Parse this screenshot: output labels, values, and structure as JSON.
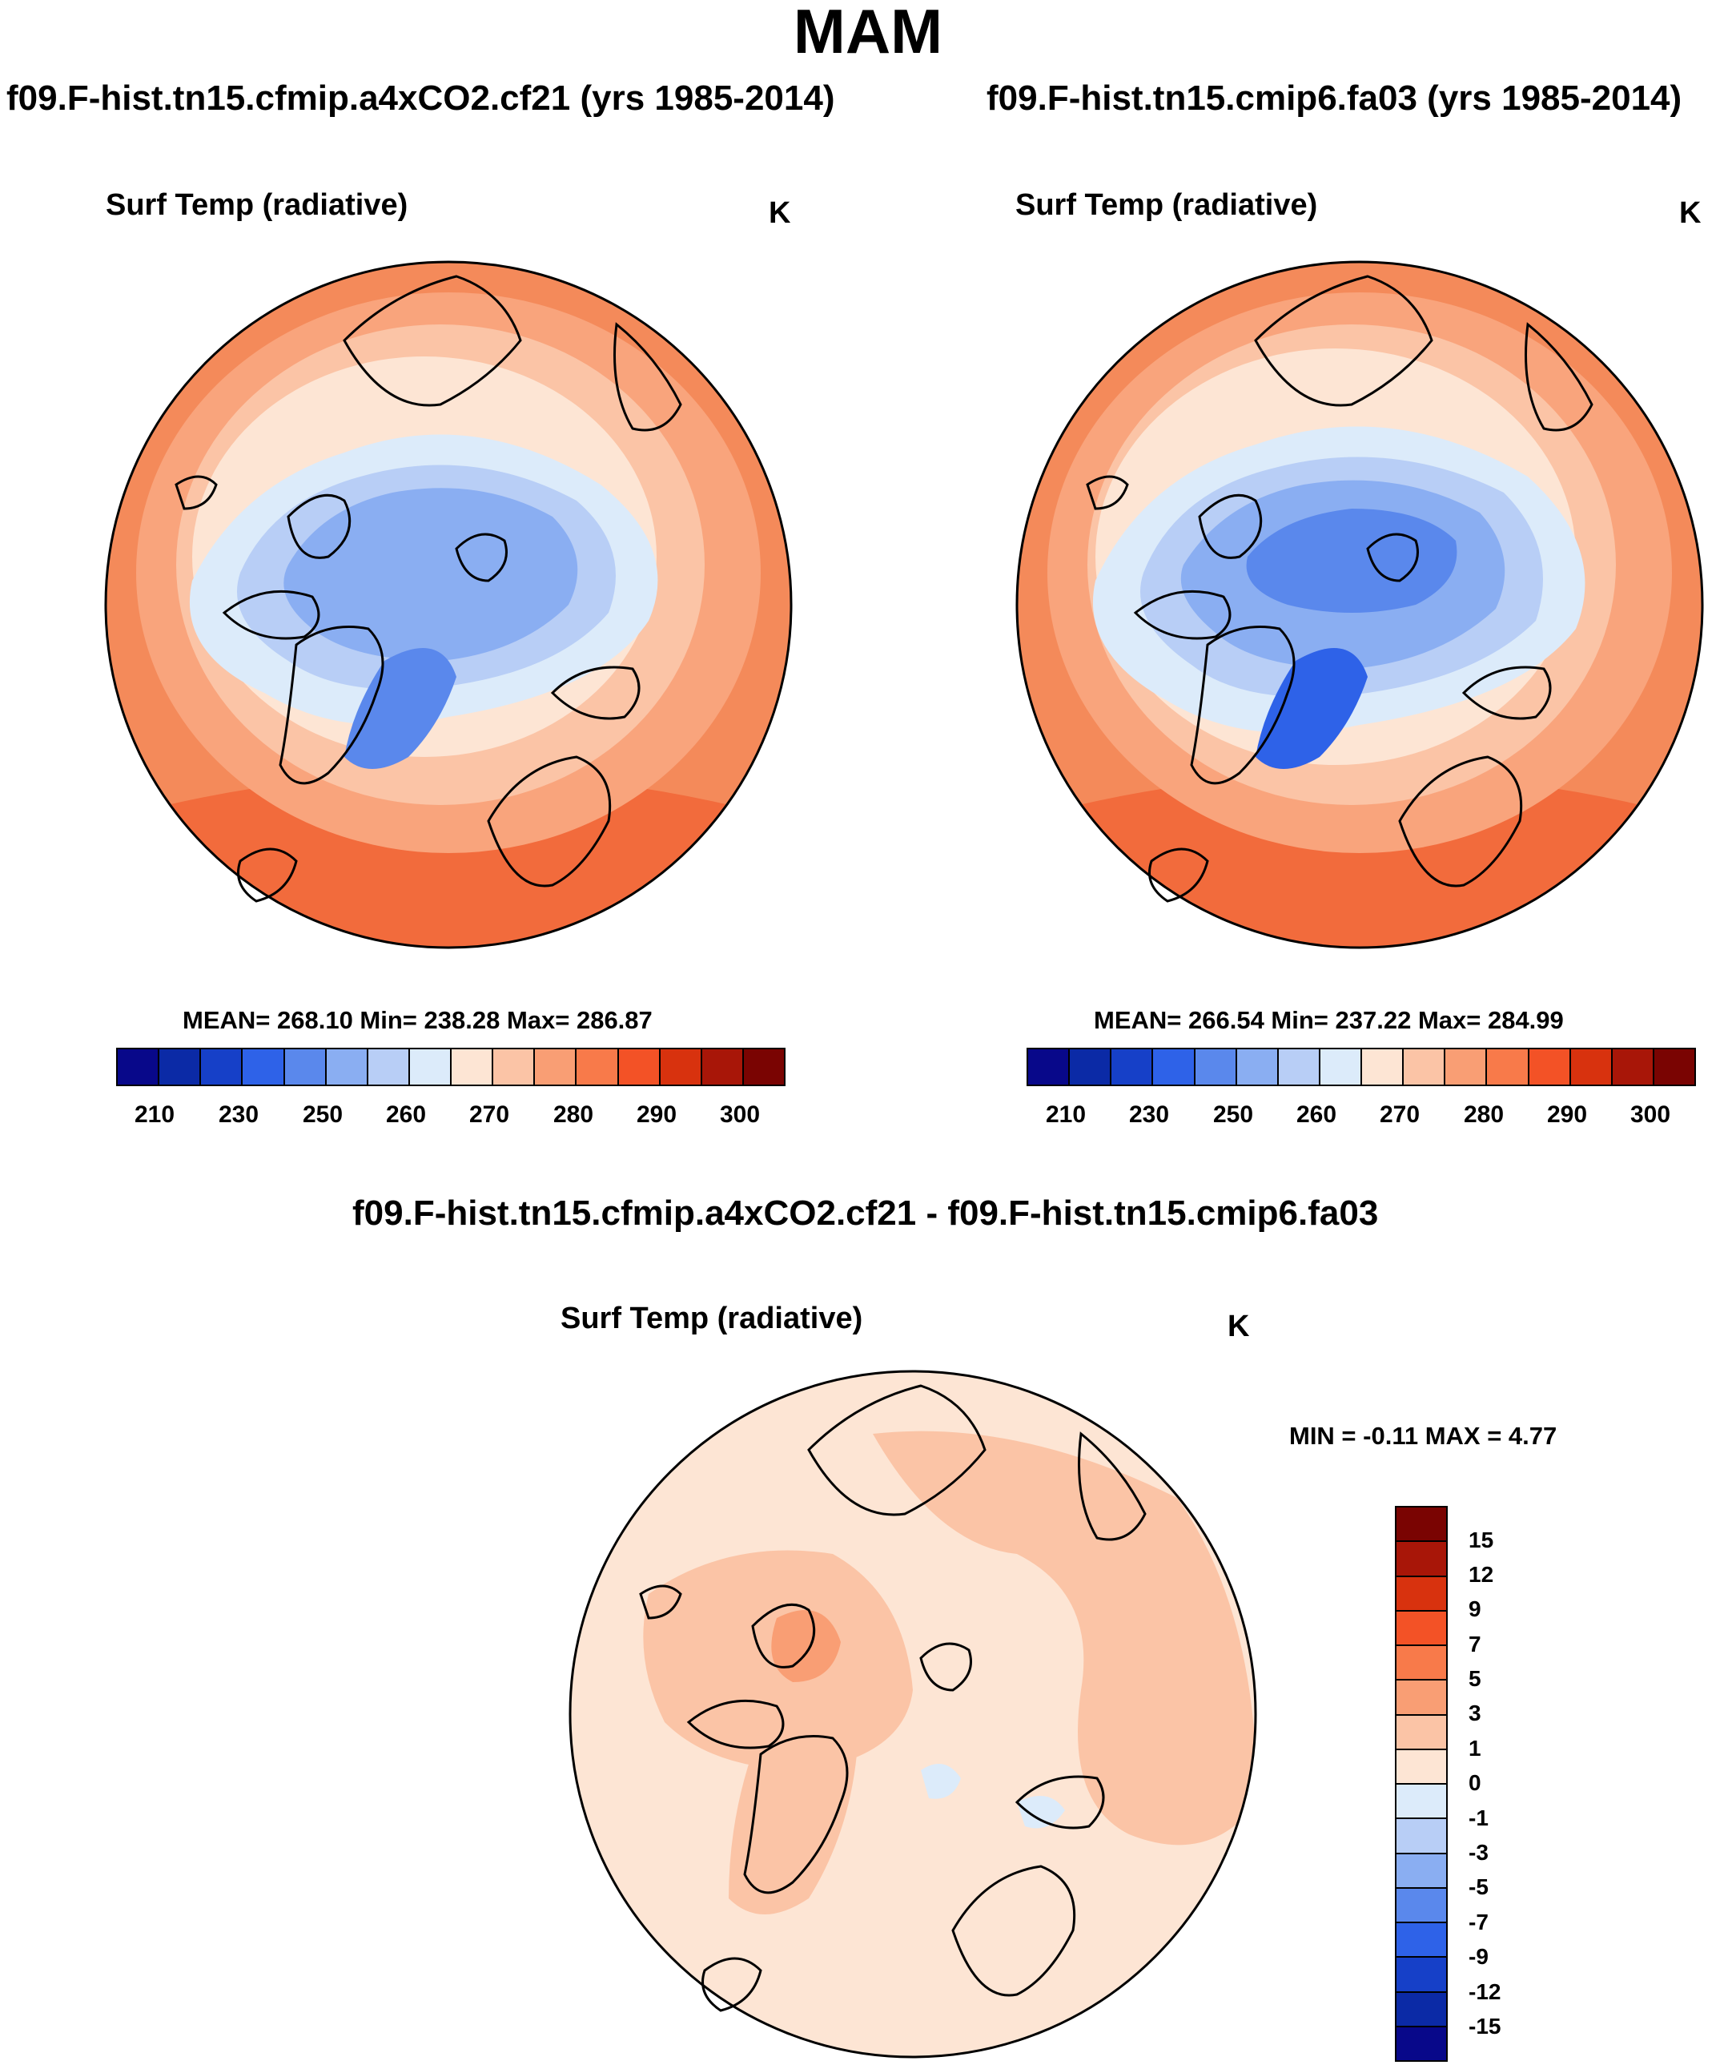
{
  "figure": {
    "season_title": "MAM"
  },
  "panels": [
    {
      "case_title": "f09.F-hist.tn15.cfmip.a4xCO2.cf21 (yrs 1985-2014)",
      "variable": "Surf Temp (radiative)",
      "units": "K",
      "stats_text": "MEAN= 268.10  Min= 238.28  Max= 286.87",
      "mean": 268.1,
      "min": 238.28,
      "max": 286.87
    },
    {
      "case_title": "f09.F-hist.tn15.cmip6.fa03 (yrs 1985-2014)",
      "variable": "Surf Temp (radiative)",
      "units": "K",
      "stats_text": "MEAN= 266.54  Min= 237.22  Max= 284.99",
      "mean": 266.54,
      "min": 237.22,
      "max": 284.99
    }
  ],
  "difference": {
    "case_title": "f09.F-hist.tn15.cfmip.a4xCO2.cf21 - f09.F-hist.tn15.cmip6.fa03",
    "variable": "Surf Temp (radiative)",
    "units": "K",
    "stats_text": "MIN =  -0.11 MAX =   4.77",
    "min": -0.11,
    "max": 4.77
  },
  "colorbar_abs": {
    "tick_labels": [
      "210",
      "230",
      "250",
      "260",
      "270",
      "280",
      "290",
      "300"
    ],
    "colors": [
      "#08088a",
      "#0b2aa6",
      "#1640c8",
      "#2e62e8",
      "#5a88ec",
      "#8aaef2",
      "#b8cef6",
      "#dcebfa",
      "#fde5d4",
      "#fbc4a6",
      "#f99e74",
      "#f87a4a",
      "#f35226",
      "#d8320e",
      "#a81608",
      "#7a0402"
    ]
  },
  "colorbar_diff": {
    "tick_labels": [
      "15",
      "12",
      "9",
      "7",
      "5",
      "3",
      "1",
      "0",
      "-1",
      "-3",
      "-5",
      "-7",
      "-9",
      "-12",
      "-15"
    ],
    "colors": [
      "#7a0402",
      "#a81608",
      "#d8320e",
      "#f35226",
      "#f87a4a",
      "#f99e74",
      "#fbc4a6",
      "#fde5d4",
      "#dcebfa",
      "#b8cef6",
      "#8aaef2",
      "#5a88ec",
      "#2e62e8",
      "#1640c8",
      "#0b2aa6",
      "#08088a"
    ]
  },
  "map_colors": {
    "warm_outer": "#f48a5a",
    "warm_mid": "#f9a47c",
    "warm_light": "#fbc4a6",
    "pale": "#fde5d4",
    "cold1": "#dcebfa",
    "cold2": "#b8cef6",
    "cold3": "#8aaef2",
    "cold4": "#5a88ec",
    "cold5": "#2e62e8"
  }
}
